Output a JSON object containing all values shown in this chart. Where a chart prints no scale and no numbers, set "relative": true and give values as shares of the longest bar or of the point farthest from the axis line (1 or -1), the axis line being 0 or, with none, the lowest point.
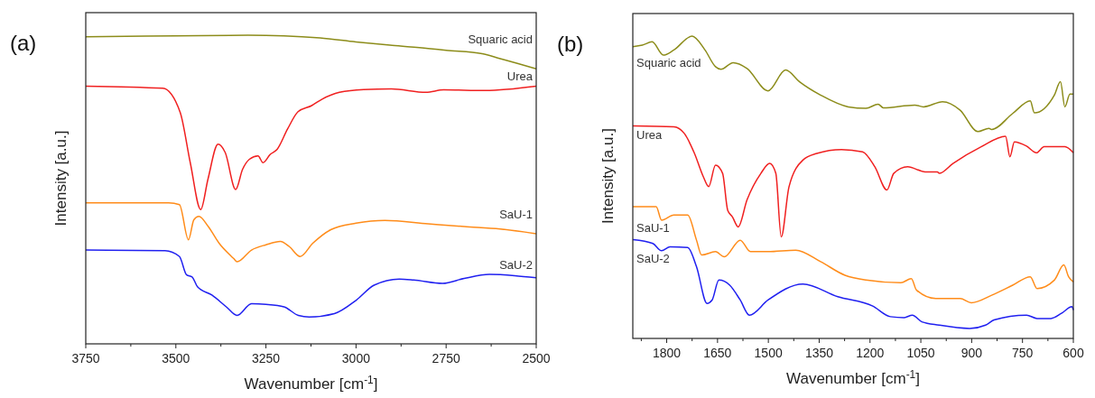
{
  "chart_data": [
    {
      "type": "line",
      "title": "(a)",
      "xlabel": "Wavenumber [cm$^{-1}$]",
      "ylabel": "Intensity [a.u.]",
      "relative": true,
      "grid": false,
      "xlim": [
        3750,
        2500
      ],
      "xticks": [
        3750,
        {
          "value": 3625,
          "label": null
        },
        3500,
        {
          "value": 3375,
          "label": null
        },
        3250,
        {
          "value": 3125,
          "label": null
        },
        3000,
        {
          "value": 2875,
          "label": null
        },
        2750,
        {
          "value": 2625,
          "label": null
        },
        2500
      ],
      "series": [
        {
          "name": "Squaric acid",
          "color": "#8c8c1a",
          "x": [
            3750,
            3500,
            3300,
            3200,
            3100,
            3000,
            2900,
            2800,
            2750,
            2650,
            2600,
            2550,
            2500
          ],
          "values": [
            0.995,
            0.998,
            1.0,
            0.998,
            0.991,
            0.978,
            0.967,
            0.957,
            0.951,
            0.94,
            0.924,
            0.908,
            0.891
          ]
        },
        {
          "name": "Urea",
          "color": "#f02020",
          "x": [
            3750,
            3536,
            3488,
            3460,
            3431,
            3411,
            3383,
            3363,
            3334,
            3315,
            3296,
            3272,
            3258,
            3238,
            3219,
            3190,
            3161,
            3123,
            3094,
            3046,
            2979,
            2902,
            2806,
            2757,
            2642,
            2500
          ],
          "values": [
            0.835,
            0.828,
            0.75,
            0.587,
            0.435,
            0.533,
            0.647,
            0.62,
            0.5,
            0.565,
            0.598,
            0.609,
            0.587,
            0.614,
            0.63,
            0.696,
            0.752,
            0.772,
            0.793,
            0.815,
            0.824,
            0.826,
            0.815,
            0.823,
            0.821,
            0.835
          ]
        },
        {
          "name": "SaU-1",
          "color": "#ff8c1a",
          "x": [
            3750,
            3520,
            3490,
            3465,
            3450,
            3436,
            3410,
            3380,
            3340,
            3330,
            3290,
            3250,
            3210,
            3185,
            3155,
            3120,
            3070,
            3000,
            2920,
            2800,
            2700,
            2600,
            2500
          ],
          "values": [
            0.457,
            0.457,
            0.451,
            0.337,
            0.402,
            0.413,
            0.38,
            0.326,
            0.277,
            0.266,
            0.304,
            0.321,
            0.332,
            0.315,
            0.283,
            0.326,
            0.37,
            0.391,
            0.4,
            0.389,
            0.38,
            0.372,
            0.357
          ]
        },
        {
          "name": "SaU-2",
          "color": "#2020f0",
          "x": [
            3750,
            3530,
            3490,
            3470,
            3455,
            3440,
            3400,
            3360,
            3330,
            3290,
            3250,
            3200,
            3160,
            3130,
            3060,
            3000,
            2950,
            2880,
            2840,
            2760,
            2700,
            2630,
            2560,
            2500
          ],
          "values": [
            0.304,
            0.302,
            0.283,
            0.223,
            0.217,
            0.185,
            0.158,
            0.12,
            0.092,
            0.13,
            0.128,
            0.12,
            0.092,
            0.087,
            0.098,
            0.141,
            0.19,
            0.21,
            0.207,
            0.196,
            0.212,
            0.225,
            0.221,
            0.214
          ]
        }
      ]
    },
    {
      "type": "line",
      "title": "(b)",
      "xlabel": "Wavenumber [cm$^{-1}$]",
      "ylabel": "Intensity [a.u.]",
      "relative": true,
      "grid": false,
      "xlim": [
        1900,
        600
      ],
      "xticks": [
        {
          "value": 1875,
          "label": null
        },
        1800,
        {
          "value": 1725,
          "label": null
        },
        1650,
        {
          "value": 1575,
          "label": null
        },
        1500,
        {
          "value": 1425,
          "label": null
        },
        1350,
        {
          "value": 1275,
          "label": null
        },
        1200,
        {
          "value": 1125,
          "label": null
        },
        1050,
        {
          "value": 975,
          "label": null
        },
        900,
        {
          "value": 825,
          "label": null
        },
        750,
        {
          "value": 675,
          "label": null
        },
        600
      ],
      "series": [
        {
          "name": "Squaric acid",
          "color": "#8c8c1a",
          "x": [
            1900,
            1872,
            1843,
            1810,
            1779,
            1725,
            1687,
            1656,
            1640,
            1604,
            1563,
            1501,
            1449,
            1408,
            1346,
            1264,
            1212,
            1176,
            1161,
            1068,
            1042,
            986,
            934,
            882,
            849,
            841,
            779,
            727,
            715,
            656,
            638,
            625,
            610,
            600
          ],
          "values": [
            0.965,
            0.97,
            0.981,
            0.937,
            0.954,
            1.0,
            0.954,
            0.899,
            0.89,
            0.912,
            0.893,
            0.819,
            0.888,
            0.849,
            0.805,
            0.766,
            0.761,
            0.775,
            0.763,
            0.772,
            0.766,
            0.783,
            0.755,
            0.684,
            0.695,
            0.691,
            0.744,
            0.786,
            0.746,
            0.805,
            0.849,
            0.766,
            0.808,
            0.808
          ]
        },
        {
          "name": "Urea",
          "color": "#f02020",
          "x": [
            1900,
            1779,
            1748,
            1718,
            1692,
            1676,
            1656,
            1635,
            1620,
            1606,
            1589,
            1563,
            1522,
            1496,
            1478,
            1462,
            1439,
            1398,
            1357,
            1284,
            1222,
            1186,
            1150,
            1130,
            1089,
            1037,
            1001,
            996,
            955,
            872,
            800,
            787,
            774,
            738,
            709,
            686,
            625,
            600
          ],
          "values": [
            0.703,
            0.7,
            0.678,
            0.612,
            0.535,
            0.502,
            0.573,
            0.546,
            0.424,
            0.402,
            0.369,
            0.458,
            0.546,
            0.579,
            0.546,
            0.336,
            0.502,
            0.59,
            0.612,
            0.625,
            0.617,
            0.568,
            0.491,
            0.546,
            0.568,
            0.551,
            0.551,
            0.546,
            0.579,
            0.634,
            0.669,
            0.601,
            0.65,
            0.636,
            0.614,
            0.634,
            0.634,
            0.614
          ]
        },
        {
          "name": "SaU-1",
          "color": "#ff8c1a",
          "x": [
            1900,
            1831,
            1815,
            1779,
            1738,
            1712,
            1697,
            1656,
            1630,
            1583,
            1553,
            1501,
            1419,
            1346,
            1274,
            1212,
            1109,
            1078,
            1063,
            1006,
            934,
            901,
            841,
            779,
            727,
            707,
            656,
            628,
            614,
            600
          ],
          "values": [
            0.436,
            0.436,
            0.391,
            0.408,
            0.408,
            0.325,
            0.276,
            0.287,
            0.27,
            0.325,
            0.287,
            0.287,
            0.292,
            0.254,
            0.209,
            0.193,
            0.184,
            0.198,
            0.16,
            0.132,
            0.132,
            0.118,
            0.143,
            0.176,
            0.204,
            0.165,
            0.193,
            0.243,
            0.204,
            0.187
          ]
        },
        {
          "name": "SaU-2",
          "color": "#2020f0",
          "x": [
            1900,
            1841,
            1815,
            1790,
            1738,
            1712,
            1681,
            1666,
            1646,
            1614,
            1583,
            1556,
            1501,
            1398,
            1295,
            1192,
            1140,
            1099,
            1075,
            1047,
            996,
            906,
            859,
            834,
            738,
            707,
            666,
            635,
            604,
            600
          ],
          "values": [
            0.327,
            0.314,
            0.29,
            0.303,
            0.301,
            0.237,
            0.116,
            0.127,
            0.193,
            0.176,
            0.127,
            0.077,
            0.127,
            0.18,
            0.138,
            0.107,
            0.072,
            0.069,
            0.077,
            0.055,
            0.044,
            0.033,
            0.044,
            0.061,
            0.077,
            0.066,
            0.066,
            0.083,
            0.105,
            0.094
          ]
        }
      ]
    }
  ]
}
